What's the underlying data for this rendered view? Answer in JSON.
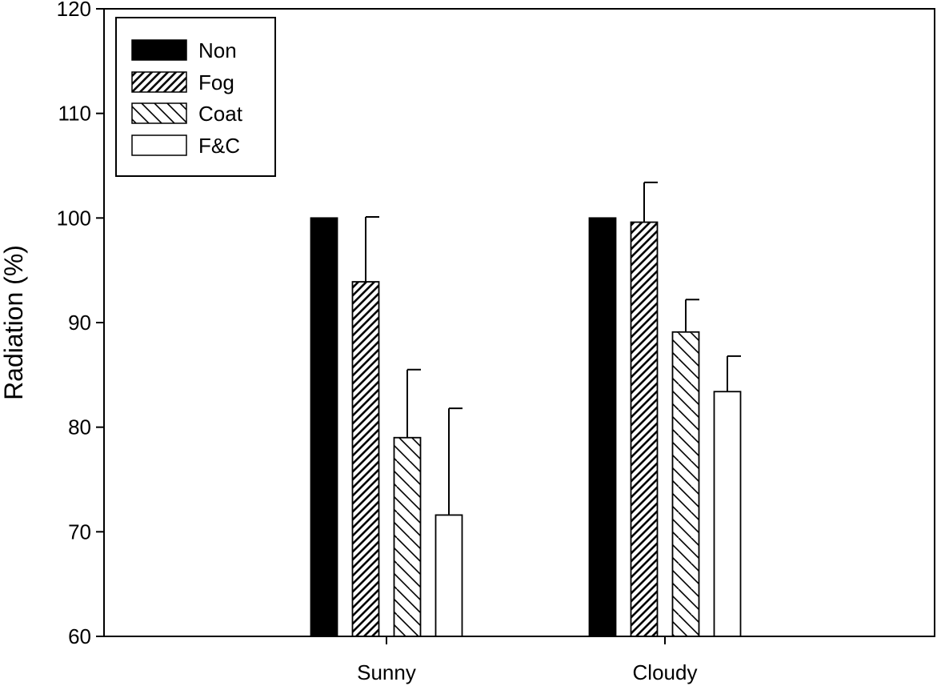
{
  "chart_data": {
    "type": "bar",
    "title": "",
    "xlabel": "",
    "ylabel": "Radiation (%)",
    "ylim": [
      60,
      120
    ],
    "yticks": [
      60,
      70,
      80,
      90,
      100,
      110,
      120
    ],
    "grid": false,
    "legend_position": "top-left",
    "categories": [
      "Sunny",
      "Cloudy"
    ],
    "series": [
      {
        "name": "Non",
        "pattern": "solid-black",
        "values": [
          100,
          100
        ],
        "error": [
          0,
          0
        ]
      },
      {
        "name": "Fog",
        "pattern": "dense-diagonal",
        "values": [
          93.9,
          99.6
        ],
        "error": [
          6.2,
          3.8
        ]
      },
      {
        "name": "Coat",
        "pattern": "wide-backslash",
        "values": [
          79.0,
          89.1
        ],
        "error": [
          6.5,
          3.1
        ]
      },
      {
        "name": "F&C",
        "pattern": "white",
        "values": [
          71.6,
          83.4
        ],
        "error": [
          10.2,
          3.4
        ]
      }
    ]
  }
}
